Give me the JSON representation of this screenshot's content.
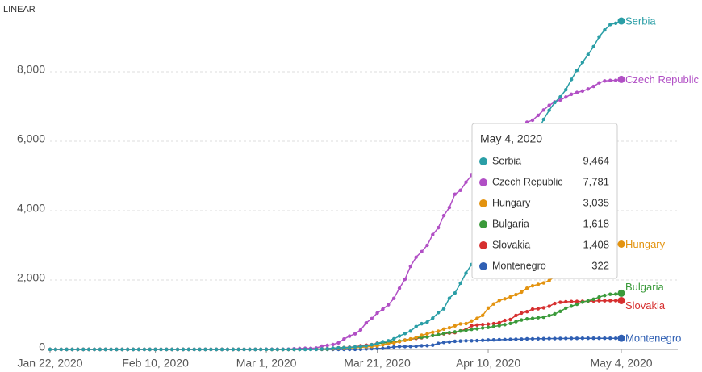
{
  "chart_data": {
    "type": "line",
    "scale_label": "LINEAR",
    "x": [
      "2020-01-22",
      "2020-01-23",
      "2020-01-24",
      "2020-01-25",
      "2020-01-26",
      "2020-01-27",
      "2020-01-28",
      "2020-01-29",
      "2020-01-30",
      "2020-01-31",
      "2020-02-01",
      "2020-02-02",
      "2020-02-03",
      "2020-02-04",
      "2020-02-05",
      "2020-02-06",
      "2020-02-07",
      "2020-02-08",
      "2020-02-09",
      "2020-02-10",
      "2020-02-11",
      "2020-02-12",
      "2020-02-13",
      "2020-02-14",
      "2020-02-15",
      "2020-02-16",
      "2020-02-17",
      "2020-02-18",
      "2020-02-19",
      "2020-02-20",
      "2020-02-21",
      "2020-02-22",
      "2020-02-23",
      "2020-02-24",
      "2020-02-25",
      "2020-02-26",
      "2020-02-27",
      "2020-02-28",
      "2020-02-29",
      "2020-03-01",
      "2020-03-02",
      "2020-03-03",
      "2020-03-04",
      "2020-03-05",
      "2020-03-06",
      "2020-03-07",
      "2020-03-08",
      "2020-03-09",
      "2020-03-10",
      "2020-03-11",
      "2020-03-12",
      "2020-03-13",
      "2020-03-14",
      "2020-03-15",
      "2020-03-16",
      "2020-03-17",
      "2020-03-18",
      "2020-03-19",
      "2020-03-20",
      "2020-03-21",
      "2020-03-22",
      "2020-03-23",
      "2020-03-24",
      "2020-03-25",
      "2020-03-26",
      "2020-03-27",
      "2020-03-28",
      "2020-03-29",
      "2020-03-30",
      "2020-03-31",
      "2020-04-01",
      "2020-04-02",
      "2020-04-03",
      "2020-04-04",
      "2020-04-05",
      "2020-04-06",
      "2020-04-07",
      "2020-04-08",
      "2020-04-09",
      "2020-04-10",
      "2020-04-11",
      "2020-04-12",
      "2020-04-13",
      "2020-04-14",
      "2020-04-15",
      "2020-04-16",
      "2020-04-17",
      "2020-04-18",
      "2020-04-19",
      "2020-04-20",
      "2020-04-21",
      "2020-04-22",
      "2020-04-23",
      "2020-04-24",
      "2020-04-25",
      "2020-04-26",
      "2020-04-27",
      "2020-04-28",
      "2020-04-29",
      "2020-04-30",
      "2020-05-01",
      "2020-05-02",
      "2020-05-03",
      "2020-05-04"
    ],
    "xlim": [
      "2020-01-22",
      "2020-05-04"
    ],
    "xticks": [
      {
        "value": "2020-01-22",
        "label": "Jan 22, 2020"
      },
      {
        "value": "2020-02-10",
        "label": "Feb 10, 2020"
      },
      {
        "value": "2020-03-01",
        "label": "Mar 1, 2020"
      },
      {
        "value": "2020-03-21",
        "label": "Mar 21, 2020"
      },
      {
        "value": "2020-04-10",
        "label": "Apr 10, 2020"
      },
      {
        "value": "2020-05-04",
        "label": "May 4, 2020"
      }
    ],
    "ylim": [
      0,
      9800
    ],
    "yticks": [
      0,
      {
        "value": 2000,
        "label": "2,000"
      },
      {
        "value": 4000,
        "label": "4,000"
      },
      {
        "value": 6000,
        "label": "6,000"
      },
      {
        "value": 8000,
        "label": "8,000"
      }
    ],
    "grid": true,
    "series": [
      {
        "name": "Serbia",
        "color": "#2a9ea6",
        "values": [
          0,
          0,
          0,
          0,
          0,
          0,
          0,
          0,
          0,
          0,
          0,
          0,
          0,
          0,
          0,
          0,
          0,
          0,
          0,
          0,
          0,
          0,
          0,
          0,
          0,
          0,
          0,
          0,
          0,
          0,
          0,
          0,
          0,
          0,
          0,
          0,
          0,
          0,
          0,
          0,
          0,
          0,
          0,
          0,
          1,
          1,
          1,
          1,
          5,
          12,
          19,
          35,
          41,
          48,
          55,
          72,
          83,
          103,
          135,
          171,
          222,
          249,
          303,
          384,
          457,
          528,
          659,
          741,
          785,
          900,
          1060,
          1171,
          1476,
          1624,
          1908,
          2200,
          2447,
          2666,
          2867,
          3105,
          3380,
          3630,
          4054,
          4465,
          4873,
          5318,
          5690,
          5994,
          6318,
          6630,
          6890,
          7114,
          7276,
          7483,
          7779,
          8042,
          8275,
          8497,
          8724,
          9009,
          9205,
          9362,
          9400,
          9464
        ]
      },
      {
        "name": "Czech Republic",
        "color": "#b14fc5",
        "values": [
          0,
          0,
          0,
          0,
          0,
          0,
          0,
          0,
          0,
          0,
          0,
          0,
          0,
          0,
          0,
          0,
          0,
          0,
          0,
          0,
          0,
          0,
          0,
          0,
          0,
          0,
          0,
          0,
          0,
          0,
          0,
          0,
          0,
          0,
          0,
          0,
          0,
          0,
          0,
          3,
          3,
          5,
          5,
          8,
          19,
          26,
          32,
          31,
          40,
          94,
          116,
          141,
          189,
          298,
          383,
          450,
          560,
          765,
          889,
          1047,
          1161,
          1287,
          1472,
          1763,
          2022,
          2395,
          2657,
          2817,
          3001,
          3308,
          3508,
          3858,
          4091,
          4472,
          4587,
          4822,
          5017,
          5312,
          5569,
          5732,
          5831,
          5991,
          6059,
          6141,
          6301,
          6433,
          6549,
          6606,
          6746,
          6900,
          7033,
          7132,
          7187,
          7273,
          7352,
          7404,
          7445,
          7504,
          7579,
          7682,
          7737,
          7750,
          7755,
          7781
        ]
      },
      {
        "name": "Hungary",
        "color": "#e3930f",
        "values": [
          0,
          0,
          0,
          0,
          0,
          0,
          0,
          0,
          0,
          0,
          0,
          0,
          0,
          0,
          0,
          0,
          0,
          0,
          0,
          0,
          0,
          0,
          0,
          0,
          0,
          0,
          0,
          0,
          0,
          0,
          0,
          0,
          0,
          0,
          0,
          0,
          0,
          0,
          0,
          0,
          0,
          0,
          2,
          2,
          4,
          7,
          7,
          9,
          12,
          13,
          16,
          19,
          30,
          32,
          39,
          50,
          58,
          73,
          85,
          103,
          131,
          167,
          187,
          226,
          261,
          300,
          343,
          408,
          447,
          492,
          525,
          585,
          623,
          678,
          733,
          744,
          817,
          895,
          980,
          1190,
          1310,
          1410,
          1458,
          1512,
          1579,
          1652,
          1763,
          1834,
          1873,
          1916,
          1984,
          2098,
          2168,
          2284,
          2443,
          2500,
          2583,
          2649,
          2727,
          2775,
          2863,
          2942,
          2998,
          3035
        ]
      },
      {
        "name": "Bulgaria",
        "color": "#3a9a3a",
        "values": [
          0,
          0,
          0,
          0,
          0,
          0,
          0,
          0,
          0,
          0,
          0,
          0,
          0,
          0,
          0,
          0,
          0,
          0,
          0,
          0,
          0,
          0,
          0,
          0,
          0,
          0,
          0,
          0,
          0,
          0,
          0,
          0,
          0,
          0,
          0,
          0,
          0,
          0,
          0,
          0,
          0,
          0,
          0,
          0,
          0,
          0,
          4,
          4,
          6,
          7,
          7,
          23,
          41,
          51,
          52,
          67,
          81,
          94,
          127,
          163,
          187,
          201,
          218,
          242,
          264,
          293,
          331,
          346,
          359,
          399,
          422,
          457,
          485,
          503,
          531,
          549,
          577,
          593,
          618,
          635,
          661,
          685,
          713,
          747,
          800,
          846,
          878,
          894,
          915,
          929,
          975,
          1024,
          1097,
          1188,
          1247,
          1300,
          1363,
          1399,
          1447,
          1506,
          1555,
          1588,
          1594,
          1618
        ]
      },
      {
        "name": "Slovakia",
        "color": "#d62f2f",
        "values": [
          0,
          0,
          0,
          0,
          0,
          0,
          0,
          0,
          0,
          0,
          0,
          0,
          0,
          0,
          0,
          0,
          0,
          0,
          0,
          0,
          0,
          0,
          0,
          0,
          0,
          0,
          0,
          0,
          0,
          0,
          0,
          0,
          0,
          0,
          0,
          0,
          0,
          0,
          0,
          0,
          0,
          0,
          0,
          0,
          1,
          3,
          5,
          7,
          7,
          10,
          21,
          32,
          44,
          54,
          63,
          72,
          105,
          123,
          137,
          178,
          185,
          204,
          216,
          226,
          269,
          292,
          314,
          336,
          363,
          400,
          426,
          450,
          471,
          485,
          534,
          581,
          682,
          701,
          715,
          728,
          742,
          769,
          835,
          863,
          977,
          1049,
          1089,
          1161,
          1173,
          1199,
          1244,
          1325,
          1360,
          1373,
          1379,
          1381,
          1384,
          1391,
          1396,
          1403,
          1403,
          1405,
          1406,
          1408
        ]
      },
      {
        "name": "Montenegro",
        "color": "#2f5fb3",
        "values": [
          0,
          0,
          0,
          0,
          0,
          0,
          0,
          0,
          0,
          0,
          0,
          0,
          0,
          0,
          0,
          0,
          0,
          0,
          0,
          0,
          0,
          0,
          0,
          0,
          0,
          0,
          0,
          0,
          0,
          0,
          0,
          0,
          0,
          0,
          0,
          0,
          0,
          0,
          0,
          0,
          0,
          0,
          0,
          0,
          0,
          0,
          0,
          0,
          0,
          0,
          0,
          0,
          0,
          0,
          0,
          2,
          3,
          14,
          21,
          27,
          31,
          52,
          70,
          82,
          84,
          85,
          91,
          105,
          109,
          123,
          174,
          201,
          214,
          233,
          241,
          248,
          249,
          255,
          263,
          272,
          274,
          280,
          283,
          288,
          293,
          296,
          303,
          304,
          307,
          308,
          311,
          313,
          315,
          316,
          317,
          318,
          320,
          321,
          321,
          321,
          322,
          322,
          322,
          322
        ]
      }
    ],
    "tooltip": {
      "title": "May 4, 2020",
      "value_labels": [
        "9,464",
        "7,781",
        "3,035",
        "1,618",
        "1,408",
        "322"
      ]
    }
  }
}
